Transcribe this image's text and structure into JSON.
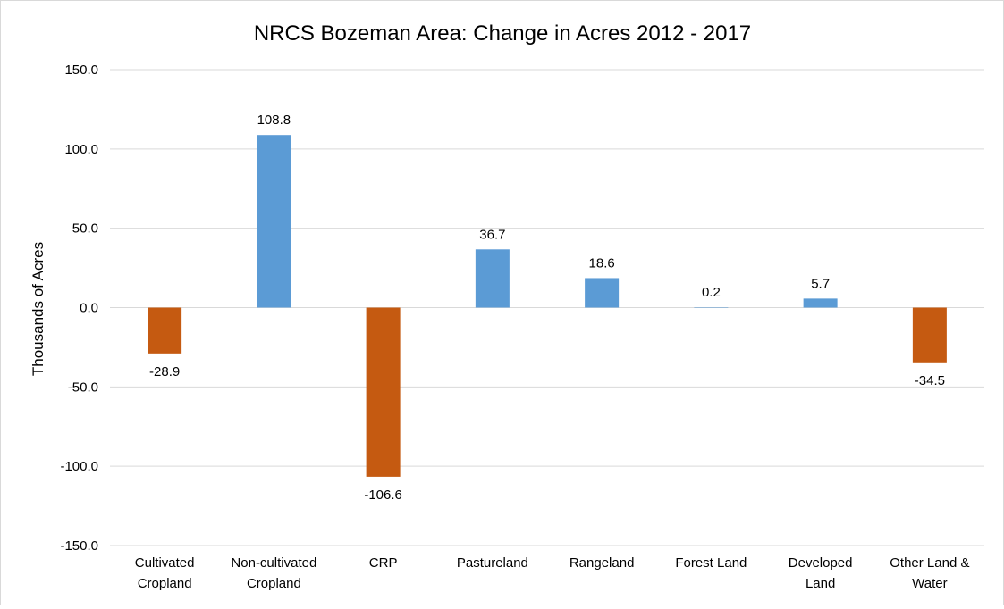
{
  "chart_data": {
    "type": "bar",
    "title": "NRCS Bozeman Area: Change in Acres 2012 - 2017",
    "xlabel": "",
    "ylabel": "Thousands of Acres",
    "ylim": [
      -150,
      150
    ],
    "yticks": [
      "150.0",
      "100.0",
      "50.0",
      "0.0",
      "-50.0",
      "-100.0",
      "-150.0"
    ],
    "grid": true,
    "categories": [
      [
        "Cultivated",
        "Cropland"
      ],
      [
        "Non-cultivated",
        "Cropland"
      ],
      [
        "CRP"
      ],
      [
        "Pastureland"
      ],
      [
        "Rangeland"
      ],
      [
        "Forest Land"
      ],
      [
        "Developed",
        "Land"
      ],
      [
        "Other Land &",
        "Water"
      ]
    ],
    "values": [
      -28.9,
      108.8,
      -106.6,
      36.7,
      18.6,
      0.2,
      5.7,
      -34.5
    ],
    "data_labels": [
      "-28.9",
      "108.8",
      "-106.6",
      "36.7",
      "18.6",
      "0.2",
      "5.7",
      "-34.5"
    ],
    "colors": {
      "positive": "#5b9bd5",
      "negative": "#c55a11",
      "grid": "#d9d9d9"
    }
  }
}
